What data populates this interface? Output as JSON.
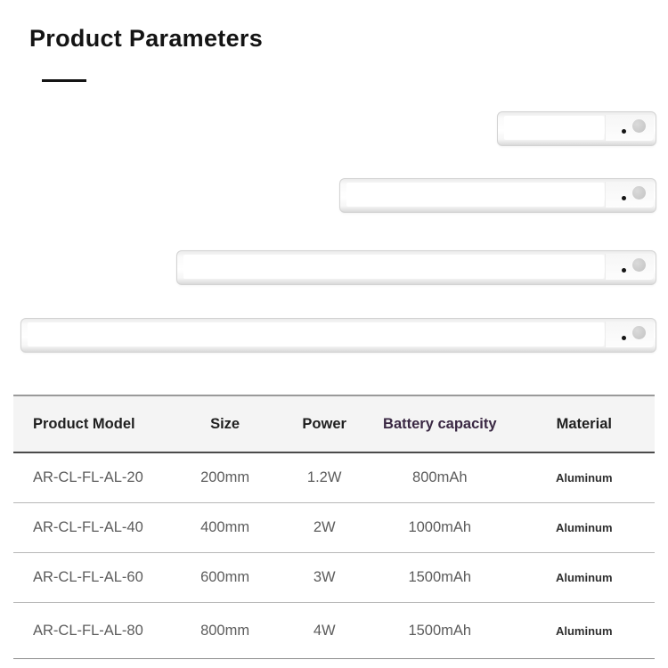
{
  "page": {
    "title": "Product Parameters"
  },
  "images": [
    {
      "name": "light-bar-short",
      "parts": [
        "aluminum-bar",
        "motion-sensor-circle",
        "indicator-led-dot"
      ]
    },
    {
      "name": "light-bar-medium",
      "parts": [
        "aluminum-bar",
        "motion-sensor-circle",
        "indicator-led-dot"
      ]
    },
    {
      "name": "light-bar-long",
      "parts": [
        "aluminum-bar",
        "motion-sensor-circle",
        "indicator-led-dot"
      ]
    },
    {
      "name": "light-bar-longest",
      "parts": [
        "aluminum-bar",
        "motion-sensor-circle",
        "indicator-led-dot"
      ]
    }
  ],
  "table": {
    "columns": [
      {
        "key": "model",
        "label": "Product Model"
      },
      {
        "key": "size",
        "label": "Size"
      },
      {
        "key": "power",
        "label": "Power"
      },
      {
        "key": "battery",
        "label": "Battery capacity",
        "accent": true
      },
      {
        "key": "material",
        "label": "Material"
      }
    ],
    "rows": [
      {
        "model": "AR-CL-FL-AL-20",
        "size": "200mm",
        "power": "1.2W",
        "battery": "800mAh",
        "material": "Aluminum"
      },
      {
        "model": "AR-CL-FL-AL-40",
        "size": "400mm",
        "power": "2W",
        "battery": "1000mAh",
        "material": "Aluminum"
      },
      {
        "model": "AR-CL-FL-AL-60",
        "size": "600mm",
        "power": "3W",
        "battery": "1500mAh",
        "material": "Aluminum"
      },
      {
        "model": "AR-CL-FL-AL-80",
        "size": "800mm",
        "power": "4W",
        "battery": "1500mAh",
        "material": "Aluminum"
      }
    ]
  },
  "colors": {
    "battery_header_text": "#3a2843",
    "header_text": "#1f1f1f",
    "body_text": "#5c5c5c",
    "header_background": "#f4f4f4",
    "accent_line": "#141414"
  }
}
